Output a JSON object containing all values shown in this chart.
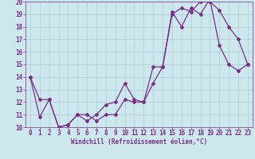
{
  "xlabel": "Windchill (Refroidissement éolien,°C)",
  "background_color": "#cce8ec",
  "grid_color": "#aacdd4",
  "line_color": "#7b2d8b",
  "spine_color": "#7b2d8b",
  "xlim": [
    -0.5,
    23.5
  ],
  "ylim": [
    10,
    20
  ],
  "xticks": [
    0,
    1,
    2,
    3,
    4,
    5,
    6,
    7,
    8,
    9,
    10,
    11,
    12,
    13,
    14,
    15,
    16,
    17,
    18,
    19,
    20,
    21,
    22,
    23
  ],
  "yticks": [
    10,
    11,
    12,
    13,
    14,
    15,
    16,
    17,
    18,
    19,
    20
  ],
  "series1_x": [
    0,
    1,
    2,
    3,
    4,
    5,
    6,
    7,
    8,
    9,
    10,
    11,
    12,
    13,
    14,
    15,
    16,
    17,
    18,
    19,
    20,
    21,
    22,
    23
  ],
  "series1_y": [
    14.0,
    12.2,
    12.2,
    10.0,
    10.2,
    11.0,
    11.0,
    10.5,
    11.0,
    11.0,
    12.2,
    12.0,
    12.0,
    14.8,
    14.8,
    19.0,
    19.5,
    19.2,
    20.0,
    20.0,
    19.3,
    18.0,
    17.0,
    15.0
  ],
  "series2_x": [
    0,
    1,
    2,
    3,
    4,
    5,
    6,
    7,
    8,
    9,
    10,
    11,
    12,
    13,
    14,
    15,
    16,
    17,
    18,
    19,
    20,
    21,
    22,
    23
  ],
  "series2_y": [
    14.0,
    10.8,
    12.2,
    10.0,
    10.2,
    11.0,
    10.5,
    11.0,
    11.8,
    12.0,
    13.5,
    12.2,
    12.0,
    13.5,
    14.8,
    19.2,
    18.0,
    19.5,
    19.0,
    20.2,
    16.5,
    15.0,
    14.5,
    15.0
  ],
  "tick_fontsize": 5.5,
  "xlabel_fontsize": 5.5,
  "marker_size": 2.0,
  "line_width": 0.9
}
